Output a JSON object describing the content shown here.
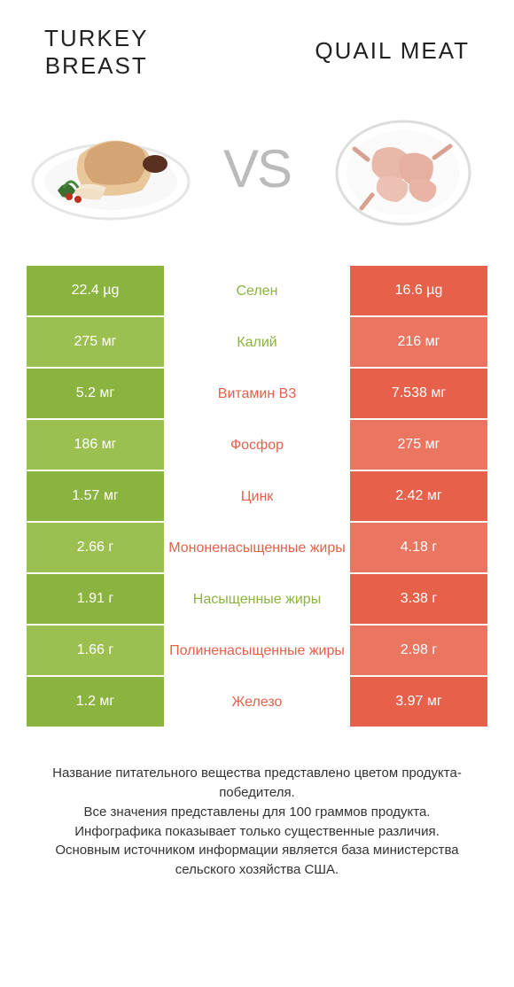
{
  "colors": {
    "left": "#8bb33f",
    "left_alt": "#9cc050",
    "right": "#e6604a",
    "right_alt": "#ea7560",
    "bg": "#ffffff",
    "text": "#333333",
    "vs": "#bbbbbb"
  },
  "header": {
    "left_line1": "Turkey",
    "left_line2": "breast",
    "right": "Quail meat",
    "vs": "VS"
  },
  "rows": [
    {
      "left": "22.4 µg",
      "mid": "Селен",
      "right": "16.6 µg",
      "winner": "left"
    },
    {
      "left": "275 мг",
      "mid": "Калий",
      "right": "216 мг",
      "winner": "left"
    },
    {
      "left": "5.2 мг",
      "mid": "Витамин B3",
      "right": "7.538 мг",
      "winner": "right"
    },
    {
      "left": "186 мг",
      "mid": "Фосфор",
      "right": "275 мг",
      "winner": "right"
    },
    {
      "left": "1.57 мг",
      "mid": "Цинк",
      "right": "2.42 мг",
      "winner": "right"
    },
    {
      "left": "2.66 г",
      "mid": "Мононенасыщенные жиры",
      "right": "4.18 г",
      "winner": "right"
    },
    {
      "left": "1.91 г",
      "mid": "Насыщенные жиры",
      "right": "3.38 г",
      "winner": "left"
    },
    {
      "left": "1.66 г",
      "mid": "Полиненасыщенные жиры",
      "right": "2.98 г",
      "winner": "right"
    },
    {
      "left": "1.2 мг",
      "mid": "Железо",
      "right": "3.97 мг",
      "winner": "right"
    }
  ],
  "footnote": [
    "Название питательного вещества представлено цветом продукта-победителя.",
    "Все значения представлены для 100 граммов продукта.",
    "Инфографика показывает только существенные различия.",
    "Основным источником информации является база министерства сельского хозяйства США."
  ]
}
